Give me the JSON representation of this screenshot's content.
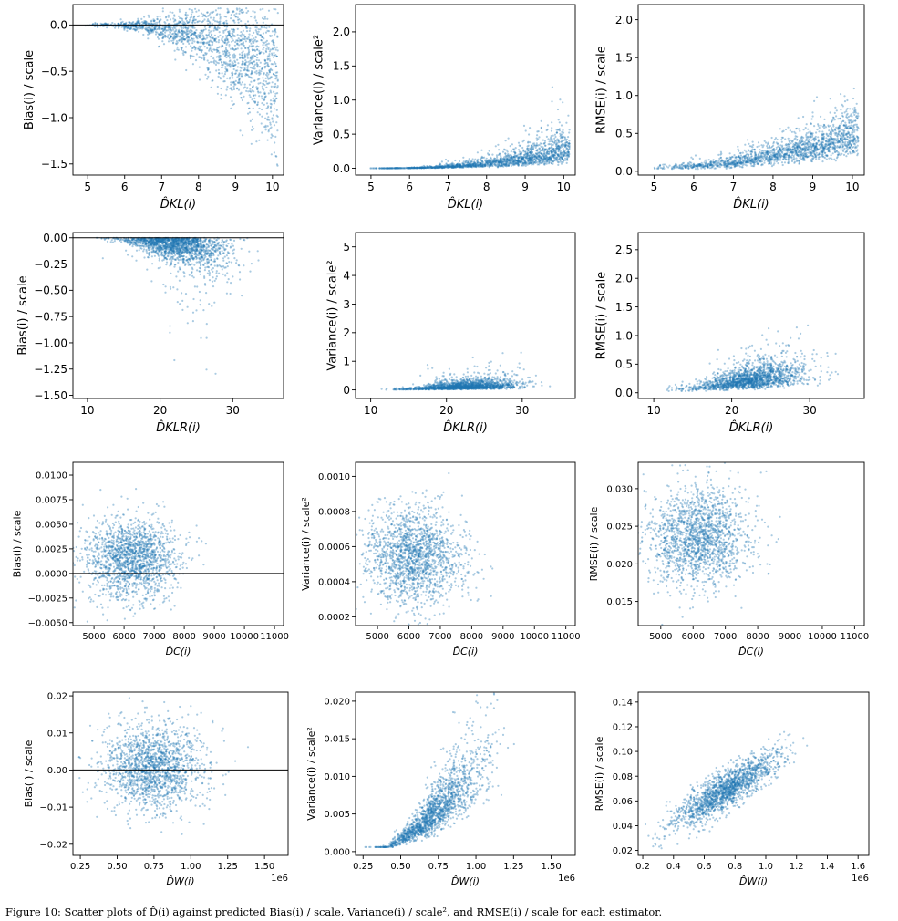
{
  "caption": "Figure 10: Scatter plots of D̂(i) against predicted Bias(i) / scale, Variance(i) / scale², and RMSE(i) / scale for each estimator.",
  "colors": {
    "point": "#1f77b4",
    "axis": "#000000",
    "zero_line": "#000000"
  },
  "chart_data": [
    {
      "id": "r1c1",
      "type": "scatter",
      "xlabel": "D̂KL(i)",
      "ylabel": "Bias(i) / scale",
      "xlim": [
        4.6,
        10.3
      ],
      "ylim": [
        -1.62,
        0.22
      ],
      "xticks": [
        5,
        6,
        7,
        8,
        9,
        10
      ],
      "xtick_labels": [
        "5",
        "6",
        "7",
        "8",
        "9",
        "10"
      ],
      "yticks": [
        -1.5,
        -1.0,
        -0.5,
        0.0
      ],
      "ytick_labels": [
        "−1.5",
        "−1.0",
        "−0.5",
        "0.0"
      ],
      "zero_line": true
    },
    {
      "id": "r1c2",
      "type": "scatter",
      "xlabel": "D̂KL(i)",
      "ylabel": "Variance(i) / scale²",
      "xlim": [
        4.6,
        10.3
      ],
      "ylim": [
        -0.1,
        2.4
      ],
      "xticks": [
        5,
        6,
        7,
        8,
        9,
        10
      ],
      "xtick_labels": [
        "5",
        "6",
        "7",
        "8",
        "9",
        "10"
      ],
      "yticks": [
        0.0,
        0.5,
        1.0,
        1.5,
        2.0
      ],
      "ytick_labels": [
        "0.0",
        "0.5",
        "1.0",
        "1.5",
        "2.0"
      ],
      "zero_line": false
    },
    {
      "id": "r1c3",
      "type": "scatter",
      "xlabel": "D̂KL(i)",
      "ylabel": "RMSE(i) / scale",
      "xlim": [
        4.6,
        10.3
      ],
      "ylim": [
        -0.05,
        2.2
      ],
      "xticks": [
        5,
        6,
        7,
        8,
        9,
        10
      ],
      "xtick_labels": [
        "5",
        "6",
        "7",
        "8",
        "9",
        "10"
      ],
      "yticks": [
        0.0,
        0.5,
        1.0,
        1.5,
        2.0
      ],
      "ytick_labels": [
        "0.0",
        "0.5",
        "1.0",
        "1.5",
        "2.0"
      ],
      "zero_line": false
    },
    {
      "id": "r2c1",
      "type": "scatter",
      "xlabel": "D̂KLR(i)",
      "ylabel": "Bias(i) / scale",
      "xlim": [
        8,
        37
      ],
      "ylim": [
        -1.53,
        0.05
      ],
      "xticks": [
        10,
        20,
        30
      ],
      "xtick_labels": [
        "10",
        "20",
        "30"
      ],
      "yticks": [
        -1.5,
        -1.25,
        -1.0,
        -0.75,
        -0.5,
        -0.25,
        0.0
      ],
      "ytick_labels": [
        "−1.50",
        "−1.25",
        "−1.00",
        "−0.75",
        "−0.50",
        "−0.25",
        "0.00"
      ],
      "zero_line": true
    },
    {
      "id": "r2c2",
      "type": "scatter",
      "xlabel": "D̂KLR(i)",
      "ylabel": "Variance(i) / scale²",
      "xlim": [
        8,
        37
      ],
      "ylim": [
        -0.3,
        5.5
      ],
      "xticks": [
        10,
        20,
        30
      ],
      "xtick_labels": [
        "10",
        "20",
        "30"
      ],
      "yticks": [
        0,
        1,
        2,
        3,
        4,
        5
      ],
      "ytick_labels": [
        "0",
        "1",
        "2",
        "3",
        "4",
        "5"
      ],
      "zero_line": false
    },
    {
      "id": "r2c3",
      "type": "scatter",
      "xlabel": "D̂KLR(i)",
      "ylabel": "RMSE(i) / scale",
      "xlim": [
        8,
        37
      ],
      "ylim": [
        -0.1,
        2.8
      ],
      "xticks": [
        10,
        20,
        30
      ],
      "xtick_labels": [
        "10",
        "20",
        "30"
      ],
      "yticks": [
        0.0,
        0.5,
        1.0,
        1.5,
        2.0,
        2.5
      ],
      "ytick_labels": [
        "0.0",
        "0.5",
        "1.0",
        "1.5",
        "2.0",
        "2.5"
      ],
      "zero_line": false
    },
    {
      "id": "r3c1",
      "type": "scatter",
      "xlabel": "D̂C(i)",
      "ylabel": "Bias(i) / scale",
      "xlim": [
        4300,
        11300
      ],
      "ylim": [
        -0.0053,
        0.0113
      ],
      "xticks": [
        5000,
        6000,
        7000,
        8000,
        9000,
        10000,
        11000
      ],
      "xtick_labels": [
        "5000",
        "6000",
        "7000",
        "8000",
        "9000",
        "10000",
        "11000"
      ],
      "yticks": [
        -0.005,
        -0.0025,
        0.0,
        0.0025,
        0.005,
        0.0075,
        0.01
      ],
      "ytick_labels": [
        "−0.0050",
        "−0.0025",
        "0.0000",
        "0.0025",
        "0.0050",
        "0.0075",
        "0.0100"
      ],
      "zero_line": true
    },
    {
      "id": "r3c2",
      "type": "scatter",
      "xlabel": "D̂C(i)",
      "ylabel": "Variance(i) / scale²",
      "xlim": [
        4300,
        11300
      ],
      "ylim": [
        0.00015,
        0.00108
      ],
      "xticks": [
        5000,
        6000,
        7000,
        8000,
        9000,
        10000,
        11000
      ],
      "xtick_labels": [
        "5000",
        "6000",
        "7000",
        "8000",
        "9000",
        "10000",
        "11000"
      ],
      "yticks": [
        0.0002,
        0.0004,
        0.0006,
        0.0008,
        0.001
      ],
      "ytick_labels": [
        "0.0002",
        "0.0004",
        "0.0006",
        "0.0008",
        "0.0010"
      ],
      "zero_line": false
    },
    {
      "id": "r3c3",
      "type": "scatter",
      "xlabel": "D̂C(i)",
      "ylabel": "RMSE(i) / scale",
      "xlim": [
        4300,
        11300
      ],
      "ylim": [
        0.0118,
        0.0335
      ],
      "xticks": [
        5000,
        6000,
        7000,
        8000,
        9000,
        10000,
        11000
      ],
      "xtick_labels": [
        "5000",
        "6000",
        "7000",
        "8000",
        "9000",
        "10000",
        "11000"
      ],
      "yticks": [
        0.015,
        0.02,
        0.025,
        0.03
      ],
      "ytick_labels": [
        "0.015",
        "0.020",
        "0.025",
        "0.030"
      ],
      "zero_line": false
    },
    {
      "id": "r4c1",
      "type": "scatter",
      "xlabel": "D̂W(i)",
      "ylabel": "Bias(i) / scale",
      "x_offset_label": "1e6",
      "xlim": [
        0.2,
        1.66
      ],
      "ylim": [
        -0.023,
        0.021
      ],
      "xticks": [
        0.25,
        0.5,
        0.75,
        1.0,
        1.25,
        1.5
      ],
      "xtick_labels": [
        "0.25",
        "0.50",
        "0.75",
        "1.00",
        "1.25",
        "1.50"
      ],
      "yticks": [
        -0.02,
        -0.01,
        0.0,
        0.01,
        0.02
      ],
      "ytick_labels": [
        "−0.02",
        "−0.01",
        "0.00",
        "0.01",
        "0.02"
      ],
      "zero_line": true
    },
    {
      "id": "r4c2",
      "type": "scatter",
      "xlabel": "D̂W(i)",
      "ylabel": "Variance(i) / scale²",
      "x_offset_label": "1e6",
      "xlim": [
        0.2,
        1.66
      ],
      "ylim": [
        -0.0005,
        0.0212
      ],
      "xticks": [
        0.25,
        0.5,
        0.75,
        1.0,
        1.25,
        1.5
      ],
      "xtick_labels": [
        "0.25",
        "0.50",
        "0.75",
        "1.00",
        "1.25",
        "1.50"
      ],
      "yticks": [
        0.0,
        0.005,
        0.01,
        0.015,
        0.02
      ],
      "ytick_labels": [
        "0.000",
        "0.005",
        "0.010",
        "0.015",
        "0.020"
      ],
      "zero_line": false
    },
    {
      "id": "r4c3",
      "type": "scatter",
      "xlabel": "D̂W(i)",
      "ylabel": "RMSE(i) / scale",
      "x_offset_label": "1e6",
      "xlim": [
        0.17,
        1.67
      ],
      "ylim": [
        0.016,
        0.148
      ],
      "xticks": [
        0.2,
        0.4,
        0.6,
        0.8,
        1.0,
        1.2,
        1.4,
        1.6
      ],
      "xtick_labels": [
        "0.2",
        "0.4",
        "0.6",
        "0.8",
        "1.0",
        "1.2",
        "1.4",
        "1.6"
      ],
      "yticks": [
        0.02,
        0.04,
        0.06,
        0.08,
        0.1,
        0.12,
        0.14
      ],
      "ytick_labels": [
        "0.02",
        "0.04",
        "0.06",
        "0.08",
        "0.10",
        "0.12",
        "0.14"
      ],
      "zero_line": false
    }
  ]
}
